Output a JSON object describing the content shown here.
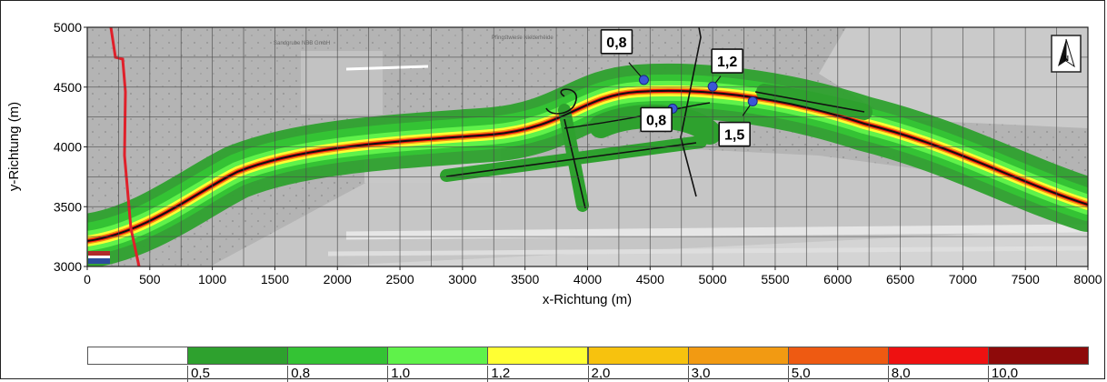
{
  "axes": {
    "ylabel": "y-Richtung (m)",
    "xlabel": "x-Richtung (m)",
    "x_ticks": [
      "0",
      "500",
      "1000",
      "1500",
      "2000",
      "2500",
      "3000",
      "3500",
      "4000",
      "4500",
      "5000",
      "5500",
      "6000",
      "6500",
      "7000",
      "7500",
      "8000"
    ],
    "y_ticks": [
      "5000",
      "4500",
      "4000",
      "3500",
      "3000"
    ],
    "xlim": [
      0,
      8000
    ],
    "ylim": [
      3000,
      5000
    ],
    "grid": true
  },
  "map_labels": [
    "Sandgrube NBB GmbH",
    "Pfingstwiese Niederheide"
  ],
  "receptors": [
    {
      "label": "0,8",
      "x": 4450,
      "y": 4560
    },
    {
      "label": "1,2",
      "x": 5000,
      "y": 4505
    },
    {
      "label": "0,8",
      "x": 4680,
      "y": 4320
    },
    {
      "label": "1,5",
      "x": 5320,
      "y": 4380
    }
  ],
  "legend": {
    "classes": [
      {
        "label": "",
        "color": "#ffffff"
      },
      {
        "label": "0,5",
        "color": "#2ea12e"
      },
      {
        "label": "0,8",
        "color": "#34c334"
      },
      {
        "label": "1,0",
        "color": "#5ff24a"
      },
      {
        "label": "1,2",
        "color": "#ffff33"
      },
      {
        "label": "2,0",
        "color": "#f7c20e"
      },
      {
        "label": "3,0",
        "color": "#f29a12"
      },
      {
        "label": "5,0",
        "color": "#ee5a12"
      },
      {
        "label": "8,0",
        "color": "#ee1111"
      },
      {
        "label": "10,0",
        "color": "#8e0a0a"
      }
    ]
  },
  "north_arrow": {
    "letter": "N",
    "icon": "north-arrow-icon"
  },
  "colors": {
    "boundary": "#e0202a",
    "road": "#111111",
    "grid": "#555555"
  }
}
